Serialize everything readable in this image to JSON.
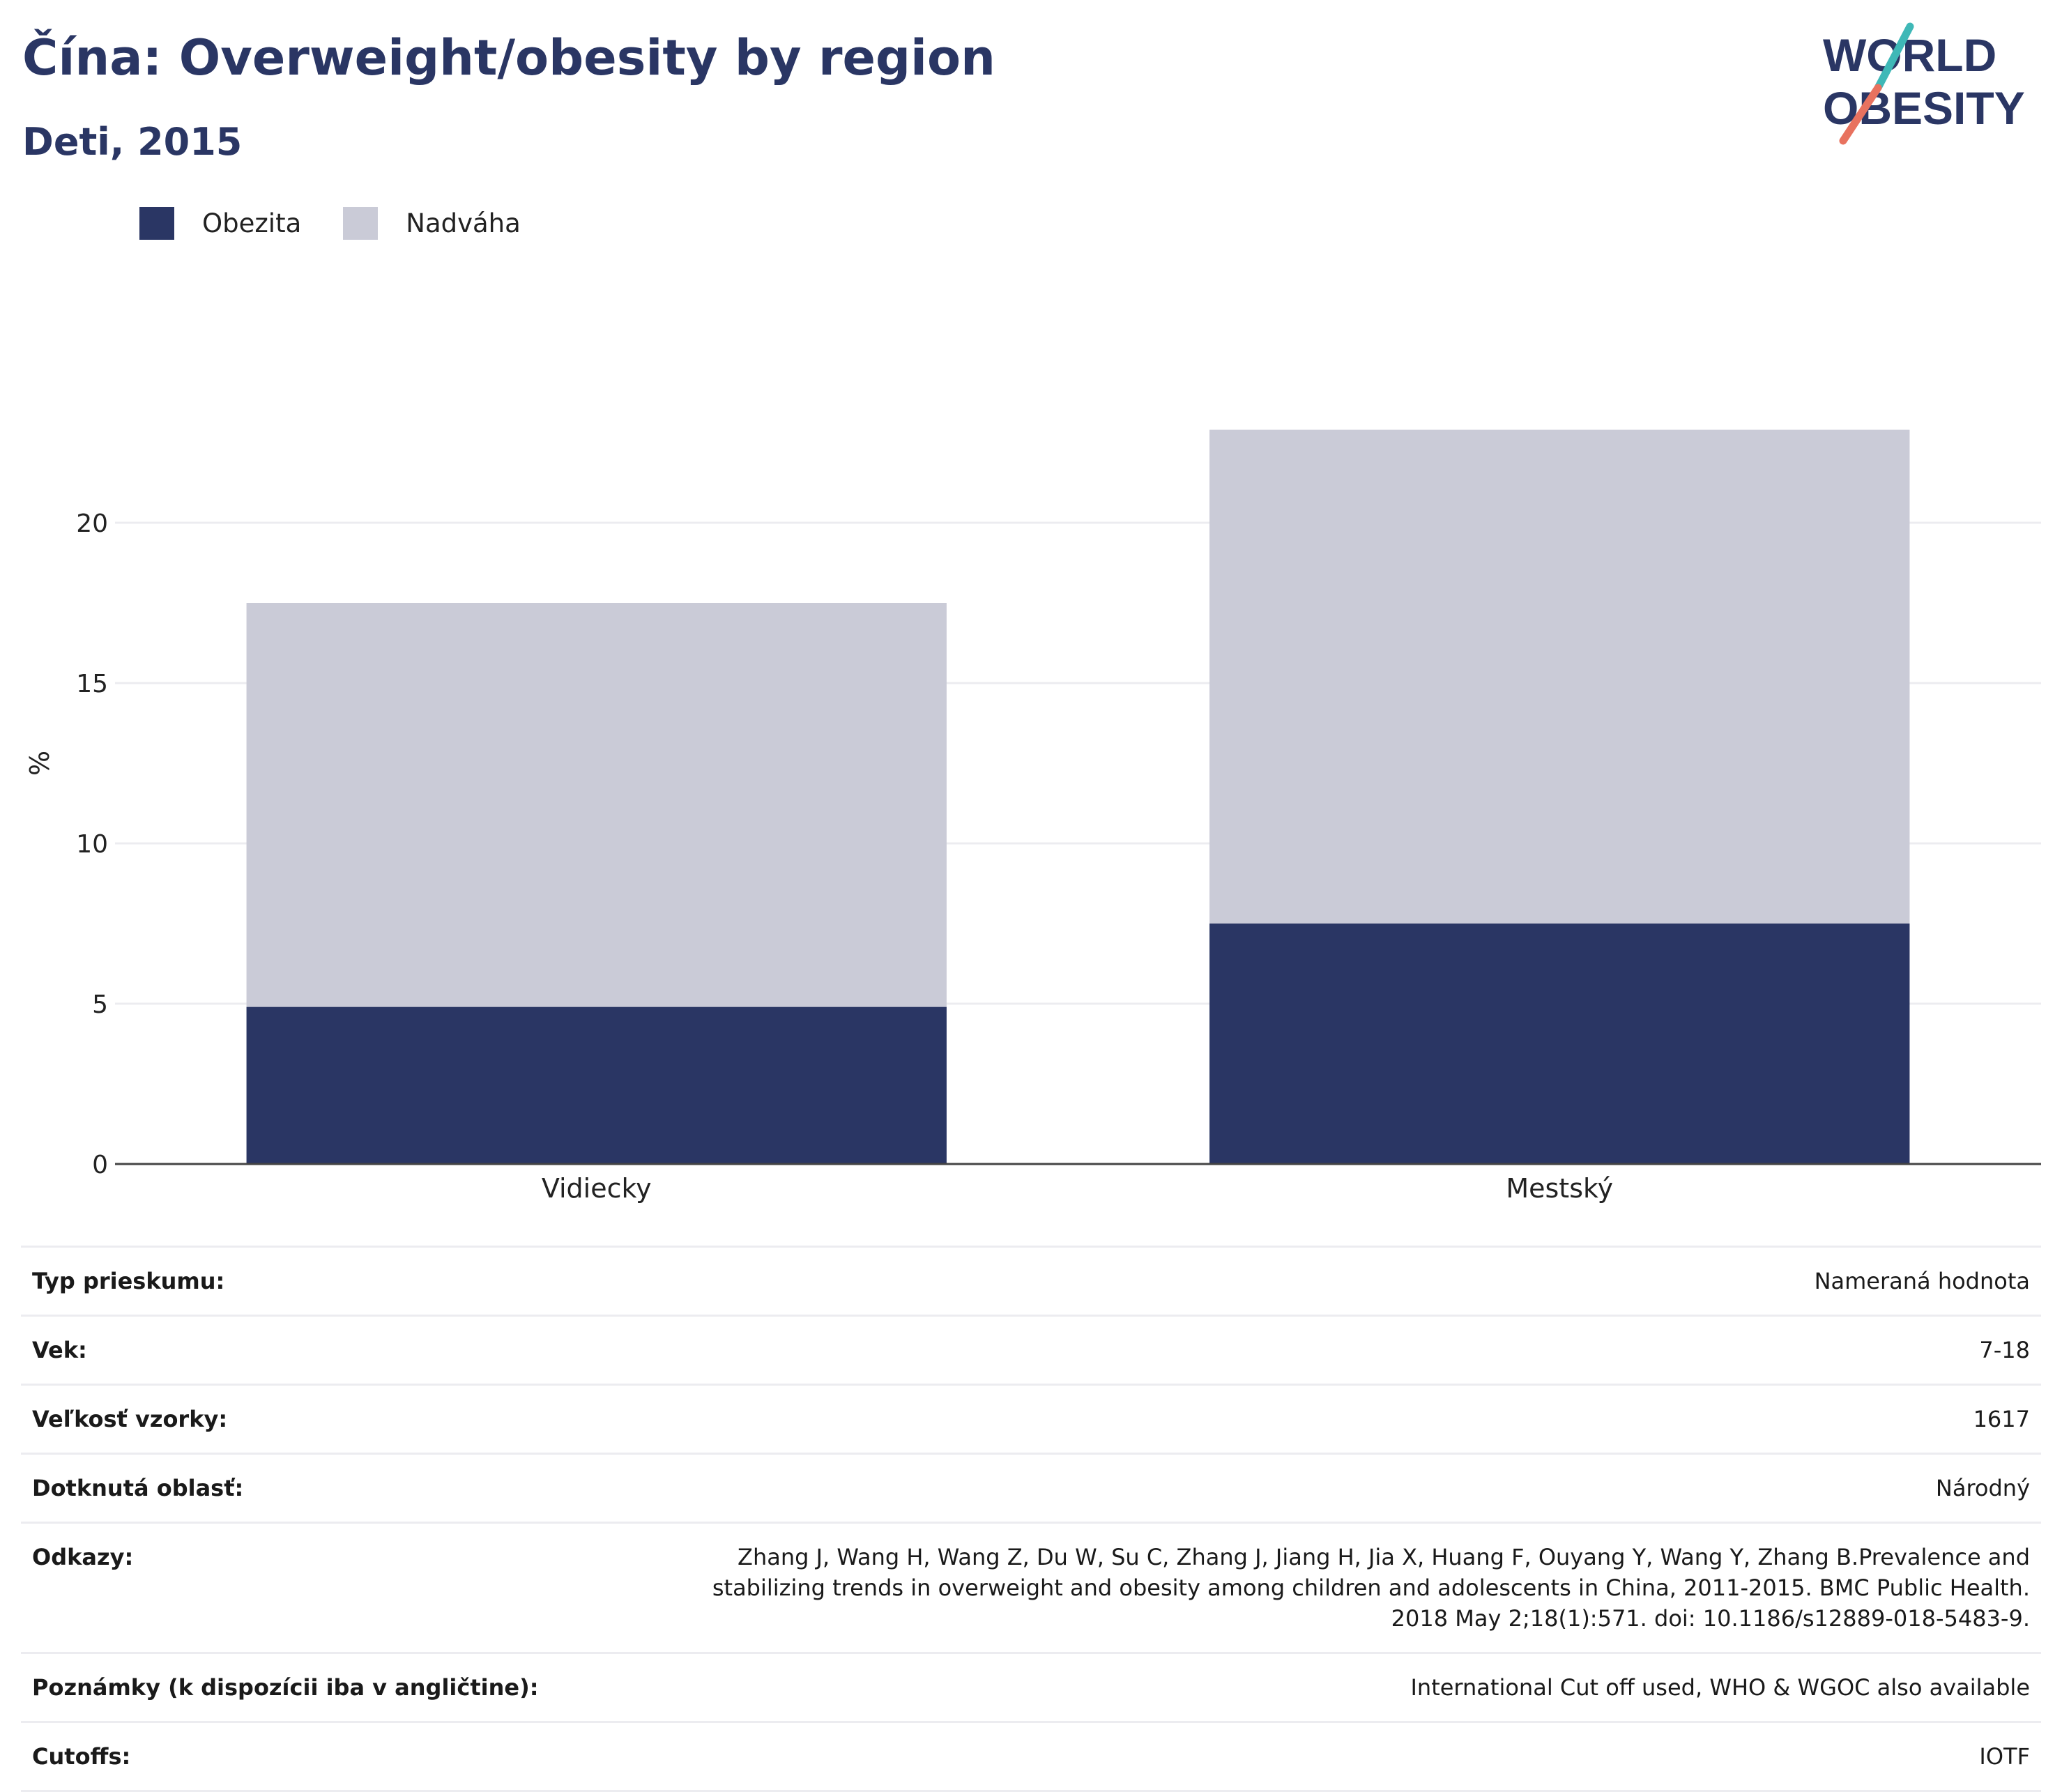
{
  "header": {
    "title": "Čína: Overweight/obesity by region",
    "subtitle": "Deti, 2015",
    "logo_line1": "WORLD",
    "logo_line2": "OBESITY"
  },
  "colors": {
    "title": "#2a3664",
    "obezita": "#2a3664",
    "nadvaha": "#cacbd7",
    "logo_teal": "#3fb8b7",
    "logo_red": "#e8725f",
    "grid": "#ececf0",
    "axis": "#444444"
  },
  "chart_data": {
    "type": "bar",
    "stacked": true,
    "categories": [
      "Vidiecky",
      "Mestský"
    ],
    "series": [
      {
        "name": "Obezita",
        "values": [
          4.9,
          7.5
        ]
      },
      {
        "name": "Nadváha",
        "values": [
          12.6,
          15.4
        ]
      }
    ],
    "totals": [
      17.5,
      22.9
    ],
    "title": "Čína: Overweight/obesity by region",
    "subtitle": "Deti, 2015",
    "xlabel": "",
    "ylabel": "%",
    "ylim": [
      0,
      25
    ],
    "yticks": [
      0,
      5,
      10,
      15,
      20
    ],
    "grid": true,
    "legend_position": "top-left"
  },
  "info": [
    {
      "label": "Typ prieskumu:",
      "value": "Nameraná hodnota"
    },
    {
      "label": "Vek:",
      "value": "7-18"
    },
    {
      "label": "Veľkosť vzorky:",
      "value": "1617"
    },
    {
      "label": "Dotknutá oblasť:",
      "value": "Národný"
    },
    {
      "label": "Odkazy:",
      "value": "Zhang J, Wang H, Wang Z, Du W, Su C, Zhang J, Jiang H, Jia X, Huang F, Ouyang Y, Wang Y, Zhang B.Prevalence and stabilizing trends in overweight and obesity among children and adolescents in China, 2011-2015. BMC Public Health. 2018 May 2;18(1):571. doi: 10.1186/s12889-018-5483-9."
    },
    {
      "label": "Poznámky (k dispozícii iba v angličtine):",
      "value": "International Cut off used, WHO & WGOC also available"
    },
    {
      "label": "Cutoffs:",
      "value": "IOTF"
    }
  ]
}
